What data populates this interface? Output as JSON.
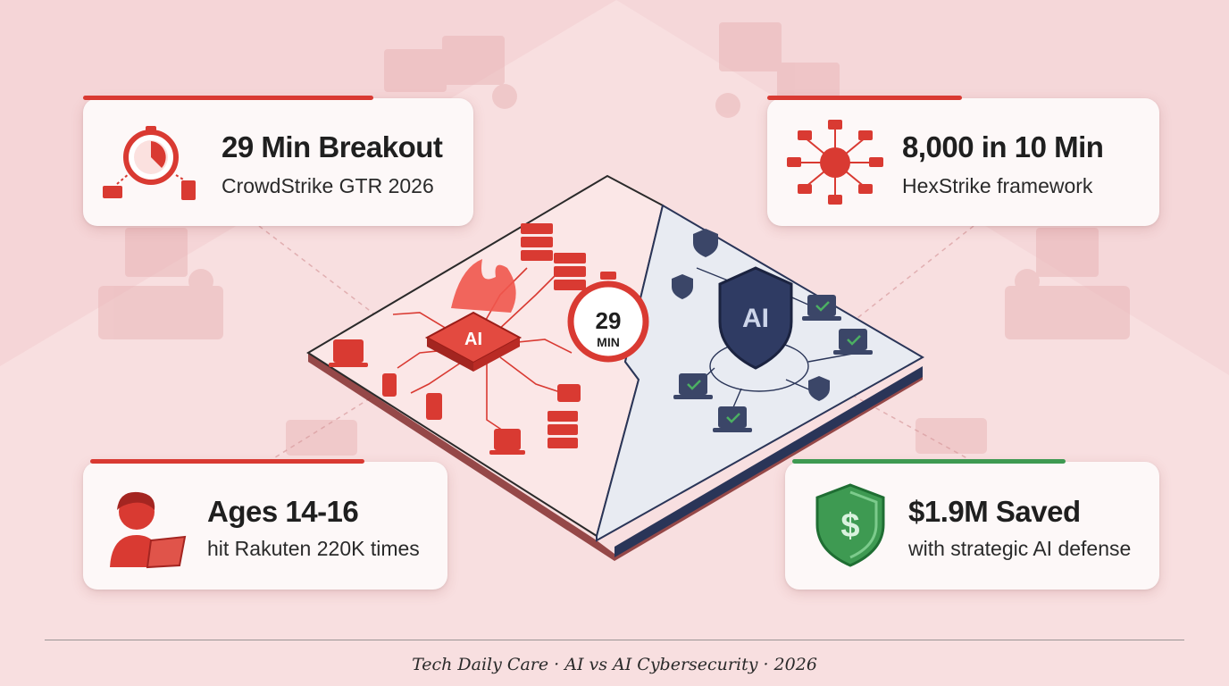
{
  "colors": {
    "attack_red": "#d93a32",
    "defense_navy": "#2a3558",
    "savings_green": "#3e9a52",
    "background": "#fbe9ea"
  },
  "center": {
    "left_chip_label": "AI",
    "shield_label": "AI",
    "timer_number": "29",
    "timer_unit": "MIN"
  },
  "cards": {
    "top_left": {
      "title": "29 Min Breakout",
      "subtitle": "CrowdStrike GTR 2026",
      "icon": "stopwatch-network-icon"
    },
    "top_right": {
      "title": "8,000 in 10 Min",
      "subtitle": "HexStrike framework",
      "icon": "network-hub-icon"
    },
    "bottom_left": {
      "title": "Ages 14-16",
      "subtitle": "hit Rakuten 220K times",
      "icon": "teen-hacker-icon"
    },
    "bottom_right": {
      "title": "$1.9M Saved",
      "subtitle": "with strategic AI defense",
      "icon": "dollar-shield-icon"
    }
  },
  "footer": {
    "text": "Tech Daily Care · AI vs AI Cybersecurity · 2026"
  }
}
